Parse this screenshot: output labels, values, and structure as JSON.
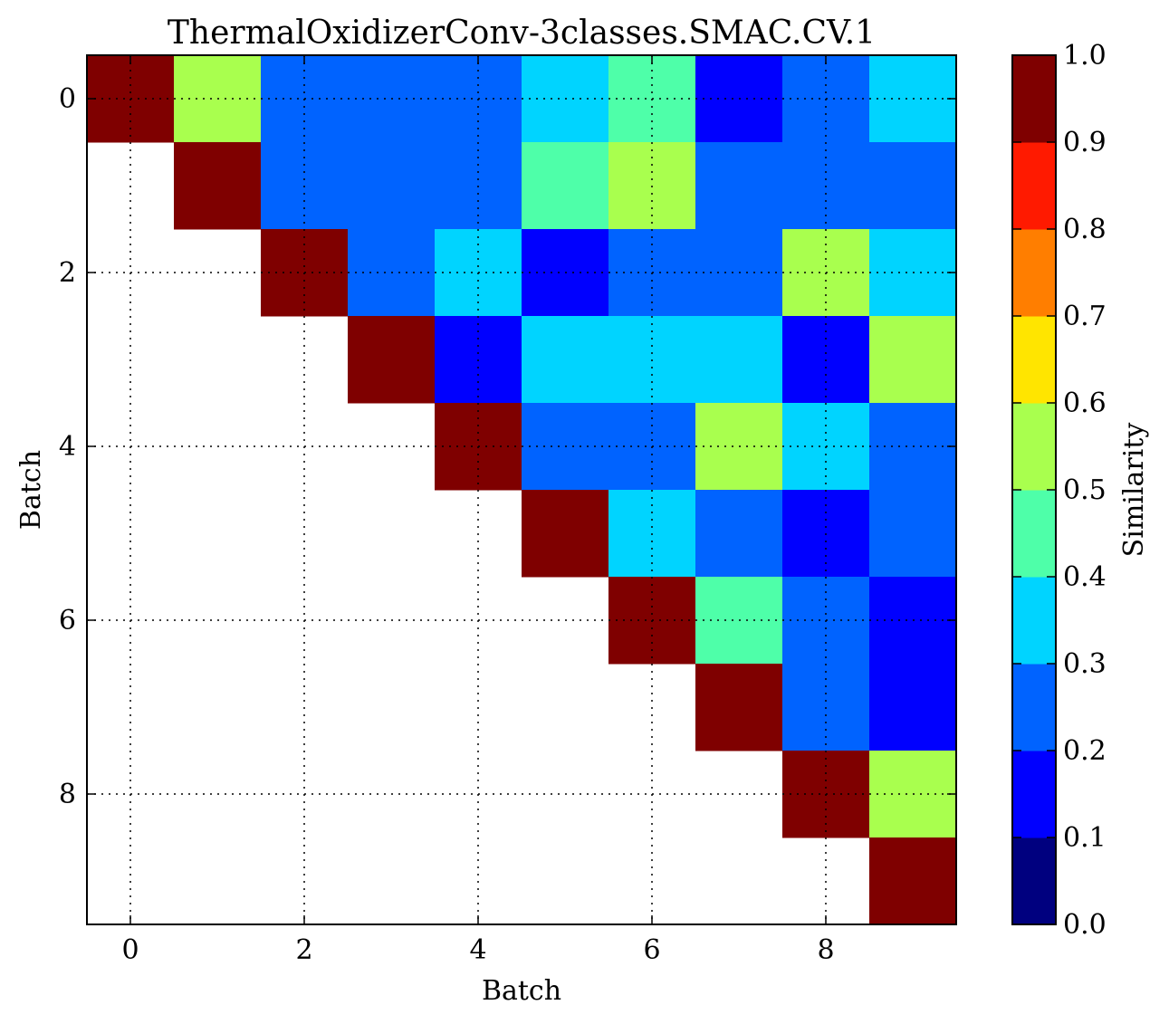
{
  "chart_data": {
    "type": "heatmap",
    "title": "ThermalOxidizerConv-3classes.SMAC.CV.1",
    "xlabel": "Batch",
    "ylabel": "Batch",
    "colorbar_label": "Similarity",
    "x_ticks": [
      "0",
      "2",
      "4",
      "6",
      "8"
    ],
    "y_ticks": [
      "0",
      "2",
      "4",
      "6",
      "8"
    ],
    "colorbar_ticks": [
      "0.0",
      "0.1",
      "0.2",
      "0.3",
      "0.4",
      "0.5",
      "0.6",
      "0.7",
      "0.8",
      "0.9",
      "1.0"
    ],
    "x_range": [
      -0.5,
      9.5
    ],
    "y_range": [
      -0.5,
      9.5
    ],
    "value_range": [
      0.0,
      1.0
    ],
    "grid": true,
    "colormap": "jet",
    "colorbar_bins": [
      "#00007f",
      "#0000ff",
      "#0063ff",
      "#00d4ff",
      "#4effa9",
      "#a9ff4e",
      "#ffe500",
      "#ff7e00",
      "#ff1a00",
      "#7f0000"
    ],
    "matrix": [
      [
        1.0,
        0.55,
        0.25,
        0.25,
        0.25,
        0.35,
        0.45,
        0.15,
        0.25,
        0.35
      ],
      [
        null,
        1.0,
        0.25,
        0.25,
        0.25,
        0.45,
        0.55,
        0.25,
        0.25,
        0.25
      ],
      [
        null,
        null,
        1.0,
        0.25,
        0.35,
        0.15,
        0.25,
        0.25,
        0.55,
        0.35
      ],
      [
        null,
        null,
        null,
        1.0,
        0.15,
        0.35,
        0.35,
        0.35,
        0.15,
        0.55
      ],
      [
        null,
        null,
        null,
        null,
        1.0,
        0.25,
        0.25,
        0.55,
        0.35,
        0.25
      ],
      [
        null,
        null,
        null,
        null,
        null,
        1.0,
        0.35,
        0.25,
        0.15,
        0.25
      ],
      [
        null,
        null,
        null,
        null,
        null,
        null,
        1.0,
        0.45,
        0.25,
        0.15
      ],
      [
        null,
        null,
        null,
        null,
        null,
        null,
        null,
        1.0,
        0.25,
        0.15
      ],
      [
        null,
        null,
        null,
        null,
        null,
        null,
        null,
        null,
        1.0,
        0.55
      ],
      [
        null,
        null,
        null,
        null,
        null,
        null,
        null,
        null,
        null,
        1.0
      ]
    ]
  }
}
